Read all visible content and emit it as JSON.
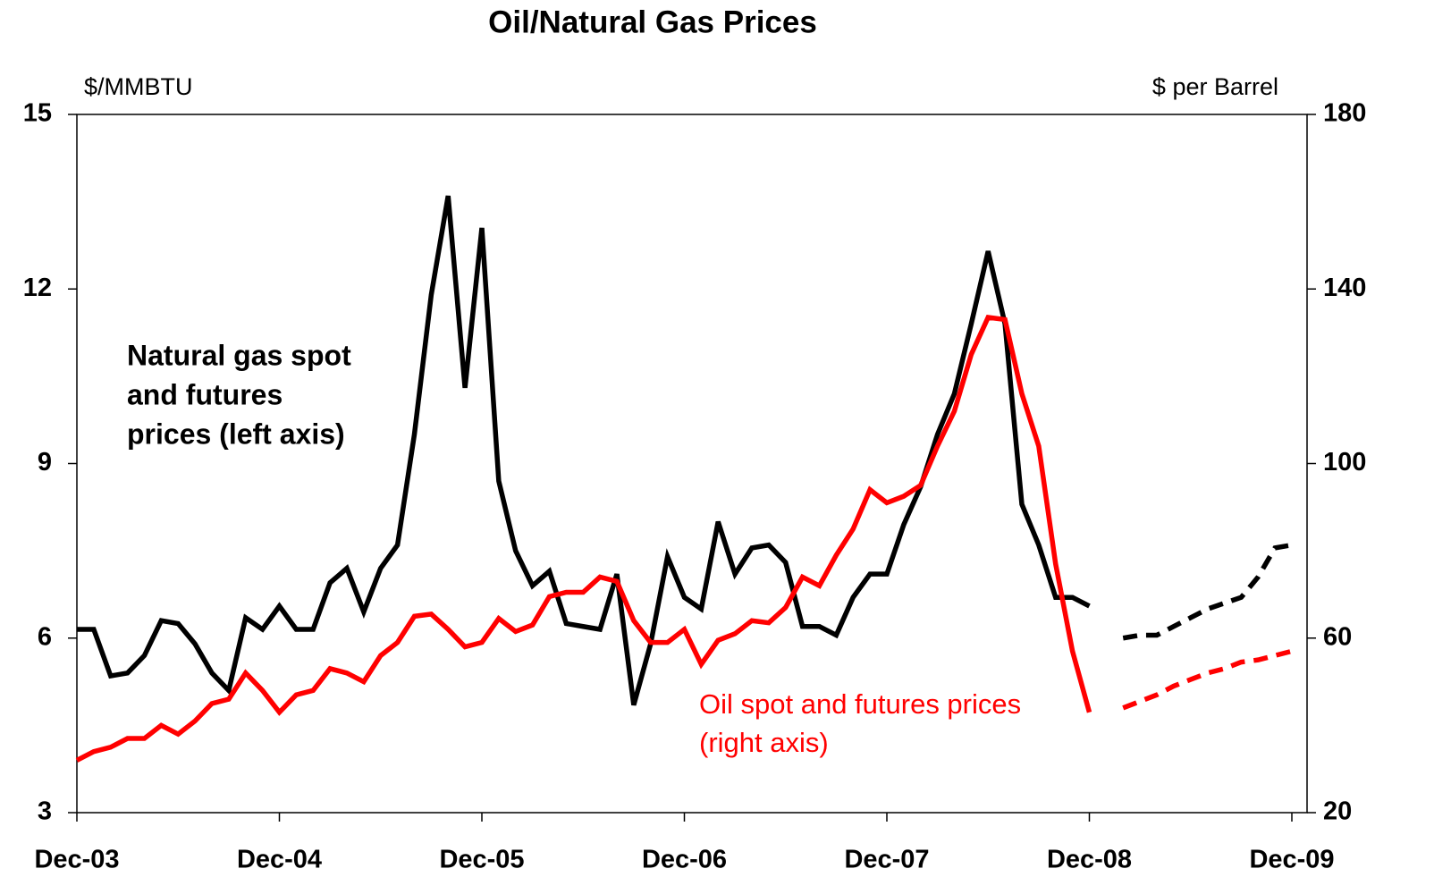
{
  "chart_data": {
    "type": "line",
    "title": "Oil/Natural Gas Prices",
    "y_label": "$/MMBTU",
    "y2_label": "$ per Barrel",
    "annotations": [
      {
        "lines": [
          "Natural gas spot",
          "and futures",
          "prices (left axis)"
        ],
        "color": "#000000"
      },
      {
        "lines": [
          "Oil spot and futures prices",
          "(right axis)"
        ],
        "color": "#ff0000"
      }
    ],
    "categories": [
      "Dec-03",
      null,
      null,
      null,
      null,
      null,
      null,
      null,
      null,
      null,
      null,
      null,
      "Dec-04",
      null,
      null,
      null,
      null,
      null,
      null,
      null,
      null,
      null,
      null,
      null,
      "Dec-05",
      null,
      null,
      null,
      null,
      null,
      null,
      null,
      null,
      null,
      null,
      null,
      "Dec-06",
      null,
      null,
      null,
      null,
      null,
      null,
      null,
      null,
      null,
      null,
      null,
      "Dec-07",
      null,
      null,
      null,
      null,
      null,
      null,
      null,
      null,
      null,
      null,
      null,
      "Dec-08",
      null,
      null,
      null,
      null,
      null,
      null,
      null,
      null,
      null,
      null,
      null,
      "Dec-09"
    ],
    "ylim": [
      3,
      15
    ],
    "yticks": [
      3,
      6,
      9,
      12,
      15
    ],
    "y2lim": [
      20,
      180
    ],
    "y2ticks": [
      20,
      60,
      100,
      140,
      180
    ],
    "series": [
      {
        "color": "#000000",
        "dashed": false,
        "values": [
          6.15,
          6.15,
          5.35,
          5.4,
          5.7,
          6.3,
          6.25,
          5.9,
          5.4,
          5.1,
          6.35,
          6.15,
          6.55,
          6.15,
          6.15,
          6.95,
          7.2,
          6.45,
          7.2,
          7.6,
          9.5,
          11.9,
          13.6,
          10.3,
          13.05,
          8.7,
          7.5,
          6.9,
          7.15,
          6.25,
          6.2,
          6.15,
          7.1,
          4.85,
          5.9,
          7.4,
          6.7,
          6.5,
          8.0,
          7.1,
          7.55,
          7.6,
          7.3,
          6.2,
          6.2,
          6.05,
          6.7,
          7.1,
          7.1,
          7.95,
          8.6,
          9.5,
          10.2,
          11.4,
          12.65,
          11.4,
          8.3,
          7.6,
          6.7,
          6.7,
          6.55,
          null,
          null,
          null,
          null,
          null,
          null,
          null,
          null,
          null,
          null,
          null,
          null
        ]
      },
      {
        "color": "#000000",
        "dashed": true,
        "values": [
          null,
          null,
          null,
          null,
          null,
          null,
          null,
          null,
          null,
          null,
          null,
          null,
          null,
          null,
          null,
          null,
          null,
          null,
          null,
          null,
          null,
          null,
          null,
          null,
          null,
          null,
          null,
          null,
          null,
          null,
          null,
          null,
          null,
          null,
          null,
          null,
          null,
          null,
          null,
          null,
          null,
          null,
          null,
          null,
          null,
          null,
          null,
          null,
          null,
          null,
          null,
          null,
          null,
          null,
          null,
          null,
          null,
          null,
          null,
          null,
          null,
          null,
          6.0,
          6.05,
          6.05,
          6.2,
          6.35,
          6.5,
          6.6,
          6.7,
          7.05,
          7.55,
          7.6
        ]
      },
      {
        "color": "#ff0000",
        "dashed": false,
        "axis": "y2",
        "values": [
          32,
          34,
          35,
          37,
          37,
          40,
          38,
          41,
          45,
          46,
          52,
          48,
          43,
          47,
          48,
          53,
          52,
          50,
          56,
          59,
          65,
          65.5,
          62,
          58,
          59,
          64.5,
          61.5,
          63,
          69.5,
          70.5,
          70.5,
          74,
          73,
          64,
          59,
          59,
          62,
          54,
          59.5,
          61,
          64,
          63.5,
          67,
          74,
          72,
          79,
          85,
          94,
          91,
          92.5,
          95,
          104,
          112,
          125,
          133.5,
          133,
          116,
          104,
          77,
          57,
          43,
          null,
          null,
          null,
          null,
          null,
          null,
          null,
          null,
          null,
          null,
          null,
          null
        ]
      },
      {
        "color": "#ff0000",
        "dashed": true,
        "axis": "y2",
        "values": [
          null,
          null,
          null,
          null,
          null,
          null,
          null,
          null,
          null,
          null,
          null,
          null,
          null,
          null,
          null,
          null,
          null,
          null,
          null,
          null,
          null,
          null,
          null,
          null,
          null,
          null,
          null,
          null,
          null,
          null,
          null,
          null,
          null,
          null,
          null,
          null,
          null,
          null,
          null,
          null,
          null,
          null,
          null,
          null,
          null,
          null,
          null,
          null,
          null,
          null,
          null,
          null,
          null,
          null,
          null,
          null,
          null,
          null,
          null,
          null,
          null,
          null,
          44,
          45.5,
          47,
          49,
          50.5,
          52,
          53,
          54.5,
          55,
          56,
          57
        ]
      }
    ]
  }
}
